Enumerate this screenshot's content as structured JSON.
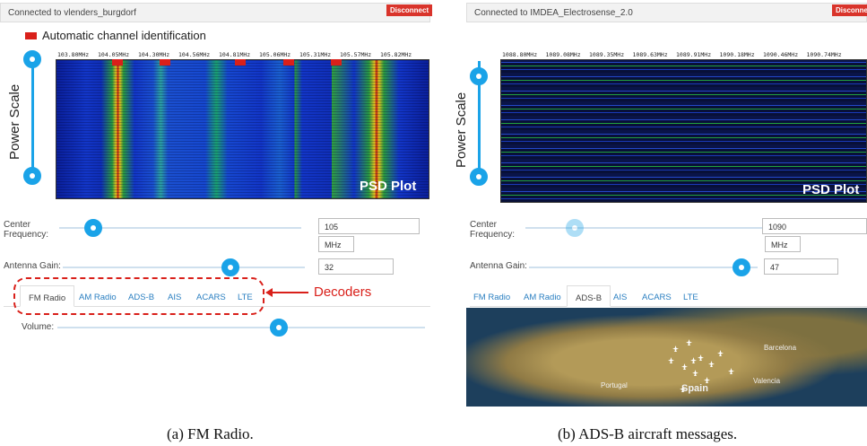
{
  "panels": [
    {
      "status": "Connected to vlenders_burgdorf",
      "disconnect": "Disconnect",
      "legend": "Automatic channel identification",
      "power_scale": "Power Scale",
      "freq_labels": [
        "103.80MHz",
        "104.05MHz",
        "104.30MHz",
        "104.56MHz",
        "104.81MHz",
        "105.06MHz",
        "105.31MHz",
        "105.57MHz",
        "105.82MHz"
      ],
      "plot_label": "PSD Plot",
      "center_frequency_label": "Center Frequency:",
      "center_frequency": "105",
      "unit": "MHz",
      "antenna_gain_label": "Antenna Gain:",
      "antenna_gain": "32",
      "tabs": [
        "FM Radio",
        "AM Radio",
        "ADS-B",
        "AIS",
        "ACARS",
        "LTE"
      ],
      "active_tab": 0,
      "annotation": "Decoders",
      "volume_label": "Volume:",
      "caption": "(a)  FM Radio."
    },
    {
      "status": "Connected to IMDEA_Electrosense_2.0",
      "disconnect": "Disconnect",
      "power_scale": "Power Scale",
      "freq_labels": [
        "1088.80MHz",
        "1089.08MHz",
        "1089.35MHz",
        "1089.63MHz",
        "1089.91MHz",
        "1090.18MHz",
        "1090.46MHz",
        "1090.74MHz"
      ],
      "plot_label": "PSD Plot",
      "center_frequency_label": "Center Frequency:",
      "center_frequency": "1090",
      "unit": "MHz",
      "antenna_gain_label": "Antenna Gain:",
      "antenna_gain": "47",
      "tabs": [
        "FM Radio",
        "AM Radio",
        "ADS-B",
        "AIS",
        "ACARS",
        "LTE"
      ],
      "active_tab": 2,
      "map_labels": [
        "Barcelona",
        "Portugal",
        "Spain",
        "Valencia"
      ],
      "caption": "(b)  ADS-B aircraft messages."
    }
  ]
}
